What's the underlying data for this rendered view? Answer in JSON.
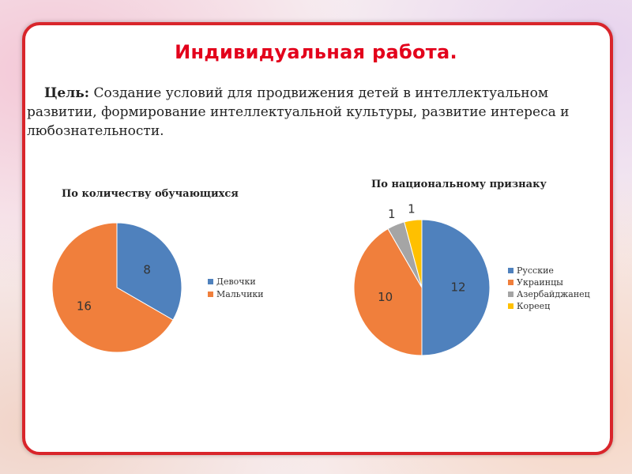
{
  "slide": {
    "title": "Индивидуальная работа.",
    "goal_label": "Цель:",
    "goal_text": " Создание условий для продвижения детей в интеллектуальном развитии, формирование интеллектуальной культуры, развитие интереса и любознательности."
  },
  "chart_data": [
    {
      "type": "pie",
      "title": "По количеству обучающихся",
      "categories": [
        "Девочки",
        "Мальчики"
      ],
      "values": [
        8,
        16
      ],
      "colors": [
        "#4f81bd",
        "#f07f3c"
      ],
      "legend": "right"
    },
    {
      "type": "pie",
      "title": "По национальному признаку",
      "categories": [
        "Русские",
        "Украинцы",
        "Азербайджанец",
        "Кореец"
      ],
      "values": [
        12,
        10,
        1,
        1
      ],
      "colors": [
        "#4f81bd",
        "#f07f3c",
        "#a5a5a5",
        "#ffc000"
      ],
      "legend": "right"
    }
  ]
}
